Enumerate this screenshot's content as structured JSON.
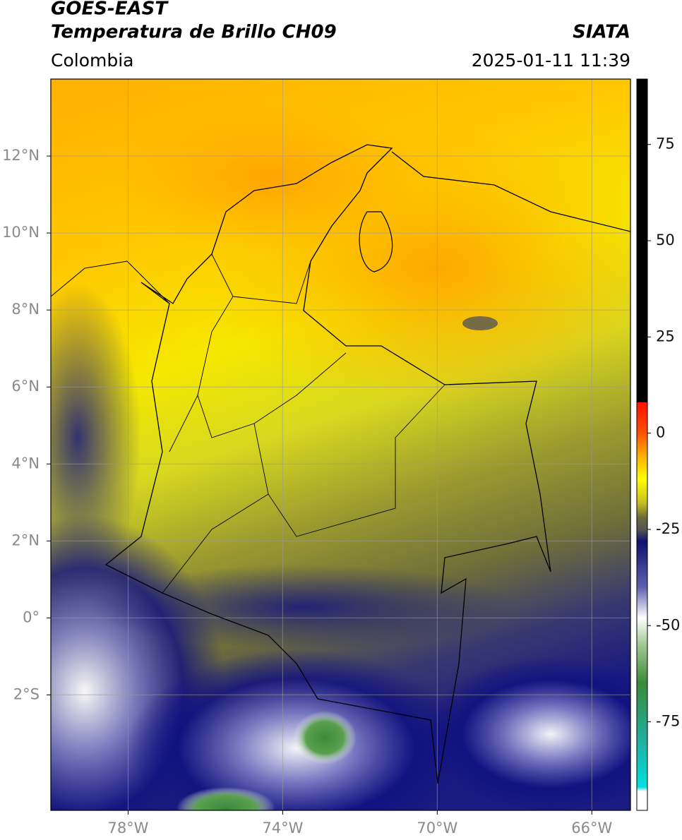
{
  "header": {
    "title": "GOES-EAST",
    "subtitle": "Temperatura de Brillo CH09",
    "source": "SIATA",
    "region": "Colombia",
    "datetime": "2025-01-11 11:39"
  },
  "map": {
    "xlim": [
      -80,
      -65
    ],
    "ylim": [
      -5,
      14
    ],
    "xticks": [
      {
        "value": -78,
        "label": "78°W"
      },
      {
        "value": -74,
        "label": "74°W"
      },
      {
        "value": -70,
        "label": "70°W"
      },
      {
        "value": -66,
        "label": "66°W"
      }
    ],
    "yticks": [
      {
        "value": 12,
        "label": "12°N"
      },
      {
        "value": 10,
        "label": "10°N"
      },
      {
        "value": 8,
        "label": "8°N"
      },
      {
        "value": 6,
        "label": "6°N"
      },
      {
        "value": 4,
        "label": "4°N"
      },
      {
        "value": 2,
        "label": "2°N"
      },
      {
        "value": 0,
        "label": "0°"
      },
      {
        "value": -2,
        "label": "2°S"
      }
    ],
    "grid": true
  },
  "colorbar": {
    "lim": [
      -98,
      92
    ],
    "ticks": [
      75,
      50,
      25,
      0,
      -25,
      -50,
      -75
    ]
  }
}
